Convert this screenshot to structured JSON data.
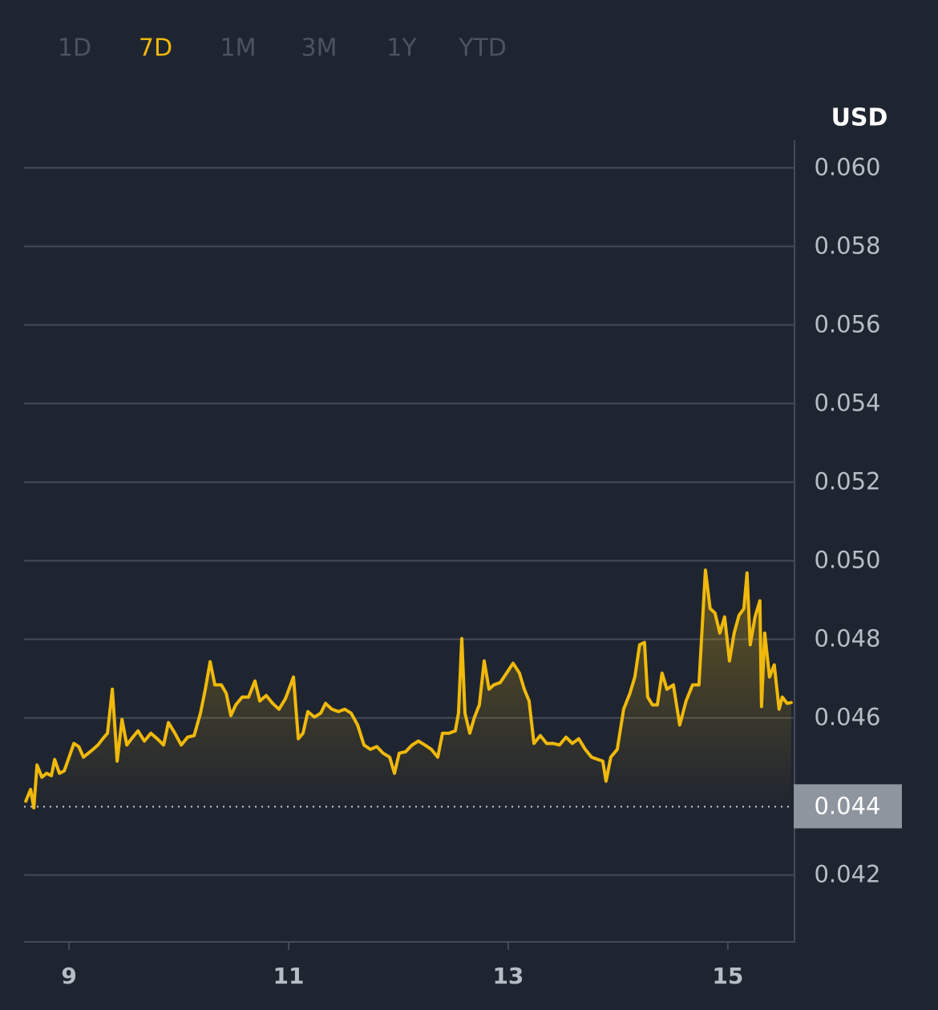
{
  "tabs": [
    "1D",
    "7D",
    "1M",
    "3M",
    "1Y",
    "YTD"
  ],
  "selected_tab": 1,
  "chart_data": {
    "type": "line",
    "y_axis_label": "USD",
    "y_axis_side": "right",
    "color": "#f0b90b",
    "grid": true,
    "xlim": [
      8.59,
      15.6
    ],
    "xticks": [
      9,
      11,
      13,
      15
    ],
    "ylim": [
      0.0403,
      0.0607
    ],
    "yticks": [
      {
        "value": 0.042,
        "label": "0.042"
      },
      {
        "value": 0.046,
        "label": "0.046"
      },
      {
        "value": 0.048,
        "label": "0.048"
      },
      {
        "value": 0.05,
        "label": "0.050"
      },
      {
        "value": 0.052,
        "label": "0.052"
      },
      {
        "value": 0.054,
        "label": "0.054"
      },
      {
        "value": 0.056,
        "label": "0.056"
      },
      {
        "value": 0.058,
        "label": "0.058"
      },
      {
        "value": 0.06,
        "label": "0.060"
      }
    ],
    "reference_line": {
      "value": 0.04374,
      "label": "0.044"
    },
    "x": [
      8.606,
      8.65,
      8.679,
      8.708,
      8.752,
      8.796,
      8.839,
      8.869,
      8.912,
      8.956,
      9.0,
      9.044,
      9.088,
      9.131,
      9.175,
      9.219,
      9.263,
      9.307,
      9.35,
      9.394,
      9.438,
      9.482,
      9.526,
      9.569,
      9.628,
      9.686,
      9.745,
      9.803,
      9.861,
      9.905,
      9.964,
      10.022,
      10.08,
      10.139,
      10.197,
      10.241,
      10.285,
      10.328,
      10.387,
      10.431,
      10.474,
      10.518,
      10.577,
      10.635,
      10.693,
      10.737,
      10.796,
      10.854,
      10.912,
      10.971,
      11.044,
      11.088,
      11.131,
      11.175,
      11.234,
      11.292,
      11.336,
      11.394,
      11.453,
      11.511,
      11.569,
      11.628,
      11.686,
      11.745,
      11.803,
      11.861,
      11.92,
      11.964,
      12.007,
      12.066,
      12.124,
      12.182,
      12.241,
      12.299,
      12.358,
      12.401,
      12.46,
      12.518,
      12.547,
      12.577,
      12.606,
      12.65,
      12.693,
      12.737,
      12.781,
      12.825,
      12.869,
      12.927,
      12.985,
      13.044,
      13.102,
      13.146,
      13.19,
      13.234,
      13.292,
      13.35,
      13.409,
      13.467,
      13.526,
      13.584,
      13.642,
      13.701,
      13.759,
      13.818,
      13.861,
      13.891,
      13.934,
      13.993,
      14.051,
      14.109,
      14.153,
      14.197,
      14.241,
      14.27,
      14.314,
      14.358,
      14.401,
      14.445,
      14.504,
      14.562,
      14.62,
      14.679,
      14.737,
      14.796,
      14.839,
      14.883,
      14.927,
      14.971,
      15.015,
      15.058,
      15.102,
      15.146,
      15.175,
      15.204,
      15.248,
      15.292,
      15.307,
      15.336,
      15.38,
      15.423,
      15.467,
      15.496,
      15.54,
      15.577
    ],
    "values": [
      0.04388,
      0.04418,
      0.04371,
      0.0448,
      0.04449,
      0.04459,
      0.04453,
      0.04494,
      0.04459,
      0.04465,
      0.045,
      0.04535,
      0.04527,
      0.045,
      0.0451,
      0.0452,
      0.04531,
      0.04547,
      0.04561,
      0.04673,
      0.0449,
      0.04596,
      0.04531,
      0.04547,
      0.04567,
      0.04541,
      0.04561,
      0.04547,
      0.04531,
      0.04588,
      0.04561,
      0.04531,
      0.04551,
      0.04555,
      0.04612,
      0.04673,
      0.04743,
      0.04684,
      0.04684,
      0.04663,
      0.04606,
      0.04633,
      0.04653,
      0.04653,
      0.04694,
      0.04643,
      0.04657,
      0.04637,
      0.04622,
      0.04649,
      0.04704,
      0.04547,
      0.04561,
      0.04616,
      0.04602,
      0.04612,
      0.04637,
      0.04622,
      0.04616,
      0.04622,
      0.04612,
      0.04582,
      0.04531,
      0.0452,
      0.04527,
      0.0451,
      0.045,
      0.04459,
      0.0451,
      0.04514,
      0.04531,
      0.04541,
      0.04531,
      0.0452,
      0.045,
      0.04561,
      0.04561,
      0.04567,
      0.04612,
      0.04802,
      0.04612,
      0.04561,
      0.04602,
      0.04633,
      0.04745,
      0.04673,
      0.04684,
      0.0469,
      0.04714,
      0.04739,
      0.04714,
      0.04673,
      0.04643,
      0.04535,
      0.04555,
      0.04535,
      0.04535,
      0.04531,
      0.04551,
      0.04535,
      0.04547,
      0.0452,
      0.045,
      0.04494,
      0.0449,
      0.04439,
      0.045,
      0.0452,
      0.04622,
      0.04663,
      0.04704,
      0.04786,
      0.04792,
      0.04653,
      0.04633,
      0.04633,
      0.04714,
      0.04673,
      0.04684,
      0.04582,
      0.04643,
      0.04684,
      0.04684,
      0.04976,
      0.04878,
      0.04867,
      0.04816,
      0.04857,
      0.04745,
      0.04816,
      0.04861,
      0.04878,
      0.04969,
      0.04786,
      0.04857,
      0.04898,
      0.04629,
      0.04816,
      0.04704,
      0.04735,
      0.04622,
      0.04653,
      0.04637,
      0.04639
    ]
  }
}
